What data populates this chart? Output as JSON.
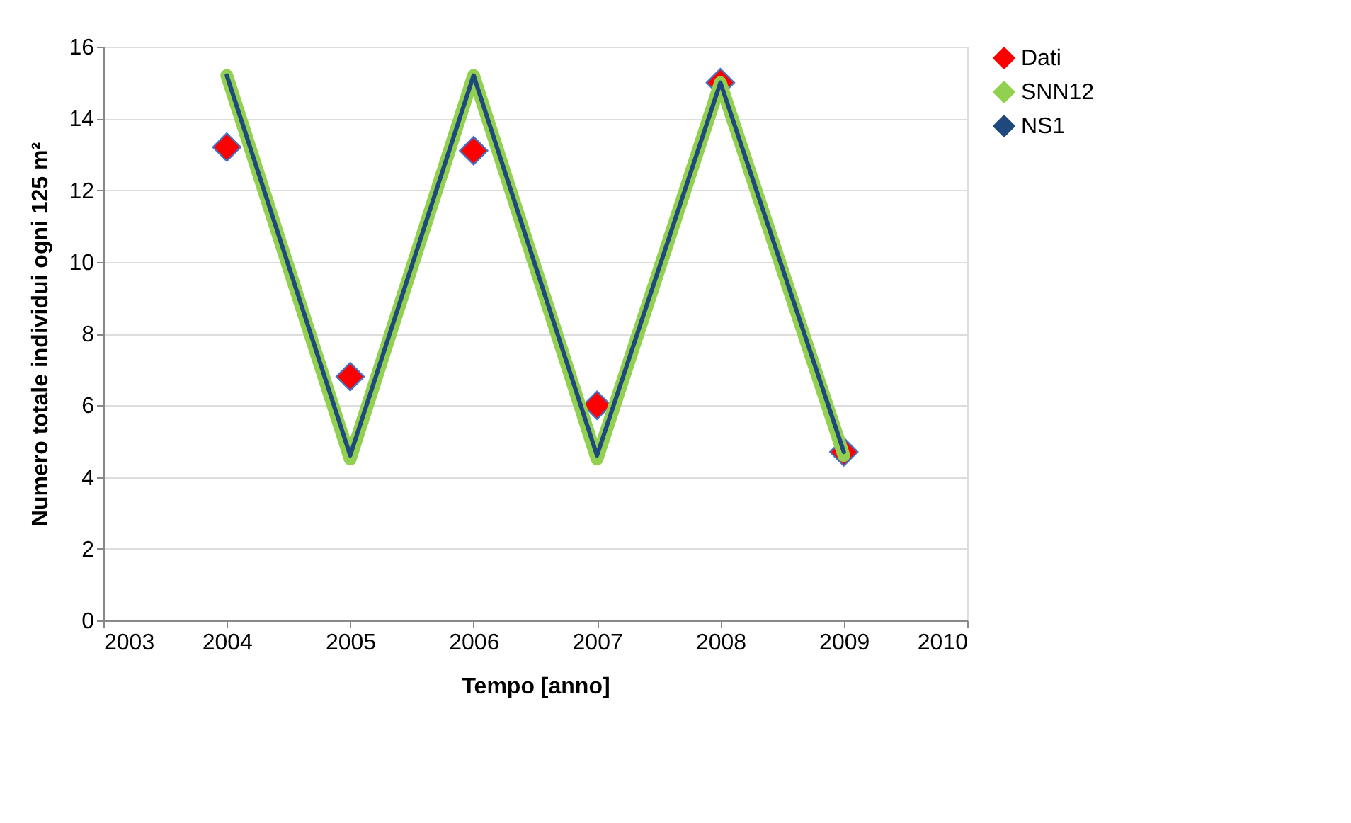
{
  "chart_data": {
    "type": "line",
    "xlabel": "Tempo [anno]",
    "ylabel": "Numero totale individui ogni 125 m²",
    "x": [
      2004,
      2005,
      2006,
      2007,
      2008,
      2009
    ],
    "series": [
      {
        "name": "Dati",
        "type": "scatter",
        "marker": "diamond",
        "color": "#ff0000",
        "values": [
          13.2,
          6.8,
          13.1,
          6.0,
          15.0,
          4.7
        ]
      },
      {
        "name": "SNN12",
        "marker": "none",
        "color": "#92d050",
        "values": [
          15.2,
          4.5,
          15.2,
          4.5,
          15.0,
          4.6
        ]
      },
      {
        "name": "NS1",
        "marker": "none",
        "color": "#1f497d",
        "values": [
          15.2,
          4.6,
          15.2,
          4.6,
          15.0,
          4.7
        ]
      }
    ],
    "xlim": [
      2003,
      2010
    ],
    "xticks": [
      2003,
      2004,
      2005,
      2006,
      2007,
      2008,
      2009,
      2010
    ],
    "ylim": [
      0,
      16
    ],
    "yticks": [
      0,
      2,
      4,
      6,
      8,
      10,
      12,
      14,
      16
    ],
    "grid": "y",
    "legend": "right"
  }
}
